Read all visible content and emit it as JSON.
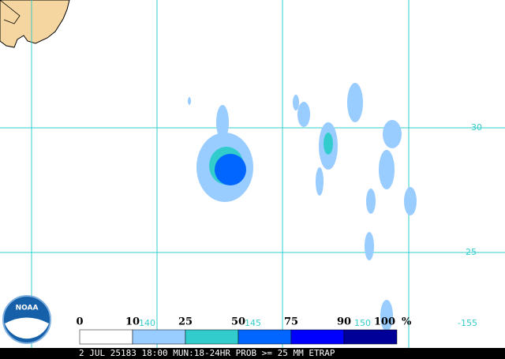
{
  "map": {
    "lat_labels": [
      "30",
      "25"
    ],
    "lon_labels": [
      "140",
      "145",
      "150",
      "-155"
    ],
    "logo": "NOAA",
    "legend": {
      "labels": [
        "0",
        "10",
        "25",
        "50",
        "75",
        "90",
        "100"
      ],
      "unit": "%",
      "colors": [
        "#ffffff",
        "#99ccff",
        "#33cccc",
        "#0066ff",
        "#0000ff",
        "#000099"
      ]
    },
    "footer": "2 JUL 25183 18:00 MUN:18-24HR PROB >= 25 MM ETRAP"
  }
}
